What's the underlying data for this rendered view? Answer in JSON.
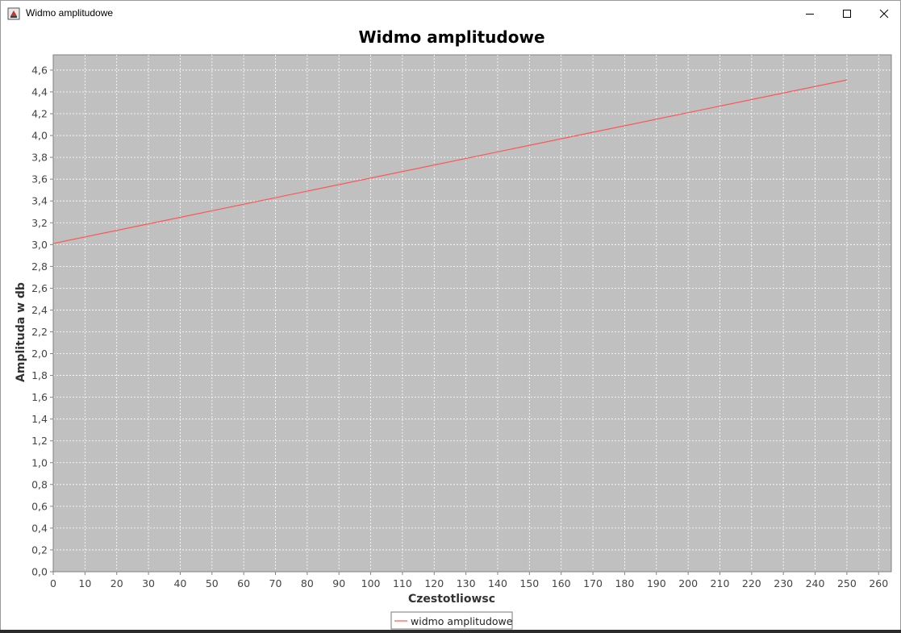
{
  "window": {
    "title": "Widmo amplitudowe",
    "icon": "java-cup-icon",
    "controls": [
      "minimize-icon",
      "maximize-icon",
      "close-icon"
    ]
  },
  "chart_data": {
    "type": "line",
    "title": "Widmo amplitudowe",
    "xlabel": "Czestotliowsc",
    "ylabel": "Amplituda w db",
    "xlim": [
      0,
      264
    ],
    "ylim": [
      0,
      4.74
    ],
    "x_ticks": [
      "0",
      "10",
      "20",
      "30",
      "40",
      "50",
      "60",
      "70",
      "80",
      "90",
      "100",
      "110",
      "120",
      "130",
      "140",
      "150",
      "160",
      "170",
      "180",
      "190",
      "200",
      "210",
      "220",
      "230",
      "240",
      "250",
      "260"
    ],
    "y_ticks": [
      "0,0",
      "0,2",
      "0,4",
      "0,6",
      "0,8",
      "1,0",
      "1,2",
      "1,4",
      "1,6",
      "1,8",
      "2,0",
      "2,2",
      "2,4",
      "2,6",
      "2,8",
      "3,0",
      "3,2",
      "3,4",
      "3,6",
      "3,8",
      "4,0",
      "4,2",
      "4,4",
      "4,6"
    ],
    "grid": true,
    "legend_position": "bottom-center",
    "series": [
      {
        "name": "widmo amplitudowe",
        "color": "#ff5555",
        "x": [
          0,
          250
        ],
        "y": [
          3.01,
          4.51
        ]
      }
    ],
    "colors": {
      "plot_background": "#c0c0c0",
      "grid": "#ffffff"
    }
  }
}
